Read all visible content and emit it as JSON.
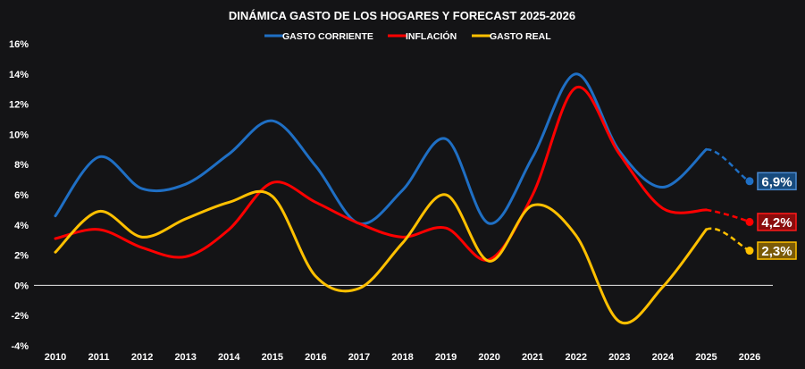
{
  "chart_data": {
    "type": "line",
    "title": "DINÁMICA GASTO DE LOS HOGARES Y FORECAST 2025-2026",
    "xlabel": "",
    "ylabel": "",
    "x": [
      "2010",
      "2011",
      "2012",
      "2013",
      "2014",
      "2015",
      "2016",
      "2017",
      "2018",
      "2019",
      "2020",
      "2021",
      "2022",
      "2023",
      "2024",
      "2025",
      "2026"
    ],
    "ylim": [
      -4,
      16
    ],
    "yticks": [
      "16%",
      "14%",
      "12%",
      "10%",
      "8%",
      "6%",
      "4%",
      "2%",
      "0%",
      "-2%",
      "-4%"
    ],
    "ytick_values": [
      16,
      14,
      12,
      10,
      8,
      6,
      4,
      2,
      0,
      -2,
      -4
    ],
    "grid": false,
    "zero_line": true,
    "legend_position": "top-center",
    "forecast_from": "2025",
    "series": [
      {
        "name": "GASTO CORRIENTE",
        "color": "#1f6fc4",
        "label_fill": "#174a7c",
        "label_border": "#4a8ad0",
        "end_label": "6,9%",
        "values": [
          4.6,
          8.5,
          6.4,
          6.7,
          8.7,
          10.9,
          7.9,
          4.1,
          6.3,
          9.7,
          4.1,
          8.5,
          14.0,
          8.9,
          6.5,
          9.0,
          6.9
        ]
      },
      {
        "name": "INFLACIÓN",
        "color": "#ff0000",
        "label_fill": "#8a0c0c",
        "label_border": "#ff1a1a",
        "end_label": "4,2%",
        "values": [
          3.1,
          3.7,
          2.5,
          1.9,
          3.7,
          6.8,
          5.5,
          4.1,
          3.2,
          3.8,
          1.7,
          6.0,
          13.1,
          8.7,
          5.1,
          5.0,
          4.2
        ]
      },
      {
        "name": "GASTO REAL",
        "color": "#ffc000",
        "label_fill": "#7a5a08",
        "label_border": "#ffc000",
        "end_label": "2,3%",
        "values": [
          2.2,
          4.9,
          3.2,
          4.4,
          5.5,
          5.9,
          0.6,
          -0.2,
          2.8,
          6.0,
          1.6,
          5.3,
          3.3,
          -2.4,
          -0.1,
          3.7,
          2.3
        ]
      }
    ]
  }
}
